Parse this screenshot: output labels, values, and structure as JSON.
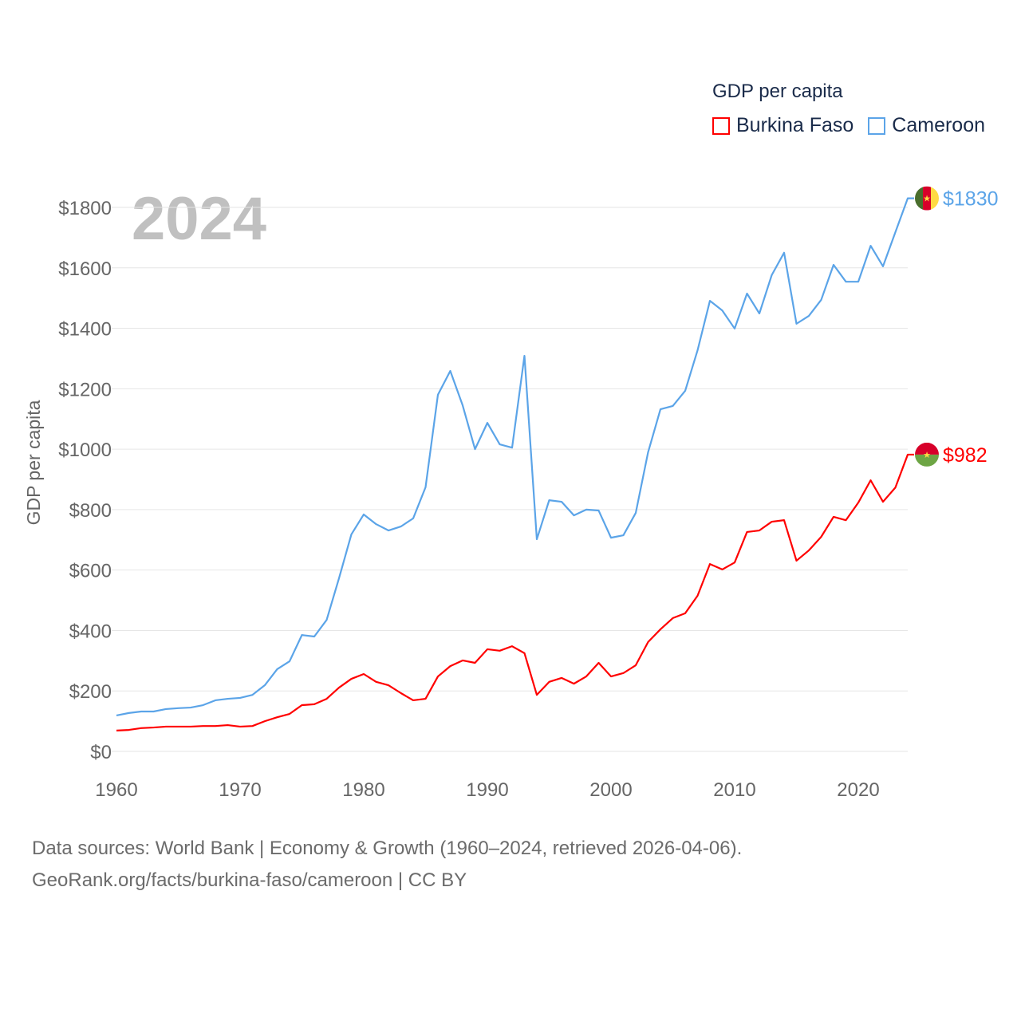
{
  "chart_data": {
    "type": "line",
    "title": "GDP per capita",
    "year_watermark": "2024",
    "xlabel": "",
    "ylabel": "GDP per capita",
    "xlim": [
      1960,
      2024
    ],
    "ylim": [
      0,
      1800
    ],
    "x_ticks": [
      "1960",
      "1970",
      "1980",
      "1990",
      "2000",
      "2010",
      "2020"
    ],
    "y_ticks": [
      "$0",
      "$200",
      "$400",
      "$600",
      "$800",
      "$1000",
      "$1200",
      "$1400",
      "$1600",
      "$1800"
    ],
    "grid": true,
    "legend_position": "top-right",
    "x_start": 1960,
    "series": [
      {
        "name": "Burkina Faso",
        "color": "#ff0000",
        "end_label": "$982",
        "values": [
          69,
          71,
          77,
          79,
          82,
          82,
          82,
          84,
          84,
          87,
          82,
          84,
          100,
          113,
          124,
          153,
          156,
          174,
          211,
          240,
          256,
          230,
          219,
          193,
          169,
          174,
          248,
          282,
          301,
          293,
          338,
          333,
          348,
          325,
          187,
          230,
          243,
          224,
          248,
          293,
          248,
          259,
          285,
          362,
          404,
          441,
          457,
          515,
          620,
          602,
          625,
          726,
          731,
          760,
          765,
          631,
          665,
          710,
          776,
          765,
          823,
          897,
          826,
          873,
          982
        ]
      },
      {
        "name": "Cameroon",
        "color": "#5ba4e8",
        "end_label": "$1830",
        "values": [
          119,
          127,
          132,
          132,
          140,
          143,
          145,
          153,
          169,
          174,
          177,
          187,
          219,
          272,
          298,
          385,
          380,
          435,
          573,
          718,
          784,
          752,
          731,
          744,
          771,
          874,
          1180,
          1259,
          1145,
          1000,
          1087,
          1016,
          1005,
          1309,
          702,
          831,
          826,
          781,
          800,
          797,
          707,
          715,
          789,
          990,
          1132,
          1143,
          1193,
          1327,
          1491,
          1459,
          1399,
          1515,
          1449,
          1576,
          1650,
          1415,
          1441,
          1494,
          1610,
          1554,
          1554,
          1673,
          1605,
          1718,
          1830
        ]
      }
    ]
  },
  "footer": {
    "line1": "Data sources: World Bank | Economy & Growth (1960–2024, retrieved 2026-04-06).",
    "line2": "GeoRank.org/facts/burkina-faso/cameroon | CC BY"
  }
}
